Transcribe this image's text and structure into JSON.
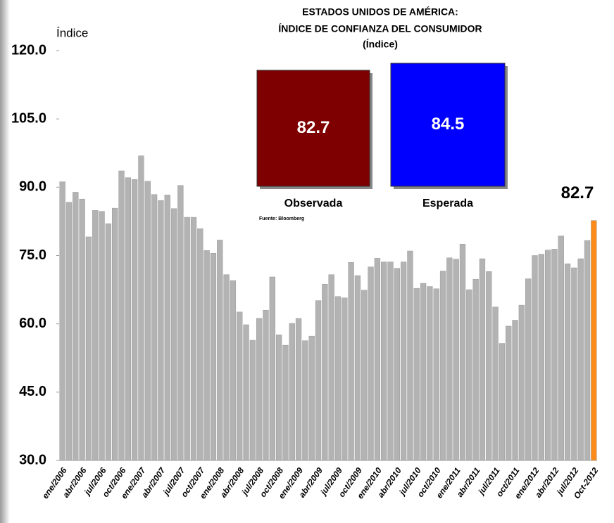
{
  "chart_data": {
    "type": "bar",
    "title": [
      "ESTADOS UNIDOS DE AMÉRICA:",
      "ÍNDICE DE CONFIANZA DEL CONSUMIDOR",
      "(Índice)"
    ],
    "y_label": "Índice",
    "source": "Fuente: Bloomberg",
    "indicators": [
      {
        "label": "Observada",
        "value": 82.7,
        "color": "#7f0000"
      },
      {
        "label": "Esperada",
        "value": 84.5,
        "color": "#0000ff"
      }
    ],
    "categories": [
      "ene/2006",
      null,
      null,
      "abr/2006",
      null,
      null,
      "jul/2006",
      null,
      null,
      "oct/2006",
      null,
      null,
      "ene/2007",
      null,
      null,
      "abr/2007",
      null,
      null,
      "jul/2007",
      null,
      null,
      "oct/2007",
      null,
      null,
      "ene/2008",
      null,
      null,
      "abr/2008",
      null,
      null,
      "jul/2008",
      null,
      null,
      "oct/2008",
      null,
      null,
      "ene/2009",
      null,
      null,
      "abr/2009",
      null,
      null,
      "jul/2009",
      null,
      null,
      "oct/2009",
      null,
      null,
      "ene/2010",
      null,
      null,
      "abr/2010",
      null,
      null,
      "jul/2010",
      null,
      null,
      "oct/2010",
      null,
      null,
      "ene/2011",
      null,
      null,
      "abr/2011",
      null,
      null,
      "jul/2011",
      null,
      null,
      "oct/2011",
      null,
      null,
      "ene/2012",
      null,
      null,
      "abr/2012",
      null,
      null,
      "jul/2012",
      null,
      null,
      "Oct-2012"
    ],
    "values": [
      91.2,
      86.7,
      88.9,
      87.4,
      79.1,
      84.9,
      84.7,
      82.0,
      85.4,
      93.6,
      92.1,
      91.7,
      96.9,
      91.3,
      88.4,
      87.1,
      88.3,
      85.3,
      90.4,
      83.4,
      83.4,
      80.9,
      76.1,
      75.5,
      78.4,
      70.8,
      69.5,
      62.6,
      59.8,
      56.4,
      61.2,
      63.0,
      70.3,
      57.6,
      55.3,
      60.1,
      61.2,
      56.3,
      57.3,
      65.1,
      68.7,
      70.8,
      66.0,
      65.7,
      73.5,
      70.6,
      67.4,
      72.5,
      74.4,
      73.6,
      73.6,
      72.2,
      73.6,
      76.0,
      67.8,
      68.9,
      68.2,
      67.7,
      71.6,
      74.5,
      74.2,
      77.5,
      67.5,
      69.8,
      74.3,
      71.5,
      63.7,
      55.7,
      59.5,
      60.8,
      64.1,
      69.9,
      75.0,
      75.3,
      76.2,
      76.4,
      79.3,
      73.2,
      72.3,
      74.3,
      78.3,
      82.7
    ],
    "colors": [
      "#b3b3b3",
      "#b3b3b3",
      "#b3b3b3",
      "#b3b3b3",
      "#b3b3b3",
      "#b3b3b3",
      "#b3b3b3",
      "#b3b3b3",
      "#b3b3b3",
      "#b3b3b3",
      "#b3b3b3",
      "#b3b3b3",
      "#b3b3b3",
      "#b3b3b3",
      "#b3b3b3",
      "#b3b3b3",
      "#b3b3b3",
      "#b3b3b3",
      "#b3b3b3",
      "#b3b3b3",
      "#b3b3b3",
      "#b3b3b3",
      "#b3b3b3",
      "#b3b3b3",
      "#b3b3b3",
      "#b3b3b3",
      "#b3b3b3",
      "#b3b3b3",
      "#b3b3b3",
      "#b3b3b3",
      "#b3b3b3",
      "#b3b3b3",
      "#b3b3b3",
      "#b3b3b3",
      "#b3b3b3",
      "#b3b3b3",
      "#b3b3b3",
      "#b3b3b3",
      "#b3b3b3",
      "#b3b3b3",
      "#b3b3b3",
      "#b3b3b3",
      "#b3b3b3",
      "#b3b3b3",
      "#b3b3b3",
      "#b3b3b3",
      "#b3b3b3",
      "#b3b3b3",
      "#b3b3b3",
      "#b3b3b3",
      "#b3b3b3",
      "#b3b3b3",
      "#b3b3b3",
      "#b3b3b3",
      "#b3b3b3",
      "#b3b3b3",
      "#b3b3b3",
      "#b3b3b3",
      "#b3b3b3",
      "#b3b3b3",
      "#b3b3b3",
      "#b3b3b3",
      "#b3b3b3",
      "#b3b3b3",
      "#b3b3b3",
      "#b3b3b3",
      "#b3b3b3",
      "#b3b3b3",
      "#b3b3b3",
      "#b3b3b3",
      "#b3b3b3",
      "#b3b3b3",
      "#b3b3b3",
      "#b3b3b3",
      "#b3b3b3",
      "#b3b3b3",
      "#b3b3b3",
      "#b3b3b3",
      "#b3b3b3",
      "#b3b3b3",
      "#b3b3b3",
      "#ff8c1a"
    ],
    "ylim": [
      30,
      120
    ],
    "yticks": [
      {
        "value": 30,
        "label": "30.0"
      },
      {
        "value": 45,
        "label": "45.0"
      },
      {
        "value": 60,
        "label": "60.0"
      },
      {
        "value": 75,
        "label": "75.0"
      },
      {
        "value": 90,
        "label": "90.0"
      },
      {
        "value": 105,
        "label": "105.0"
      },
      {
        "value": 120,
        "label": "120.0"
      }
    ]
  }
}
